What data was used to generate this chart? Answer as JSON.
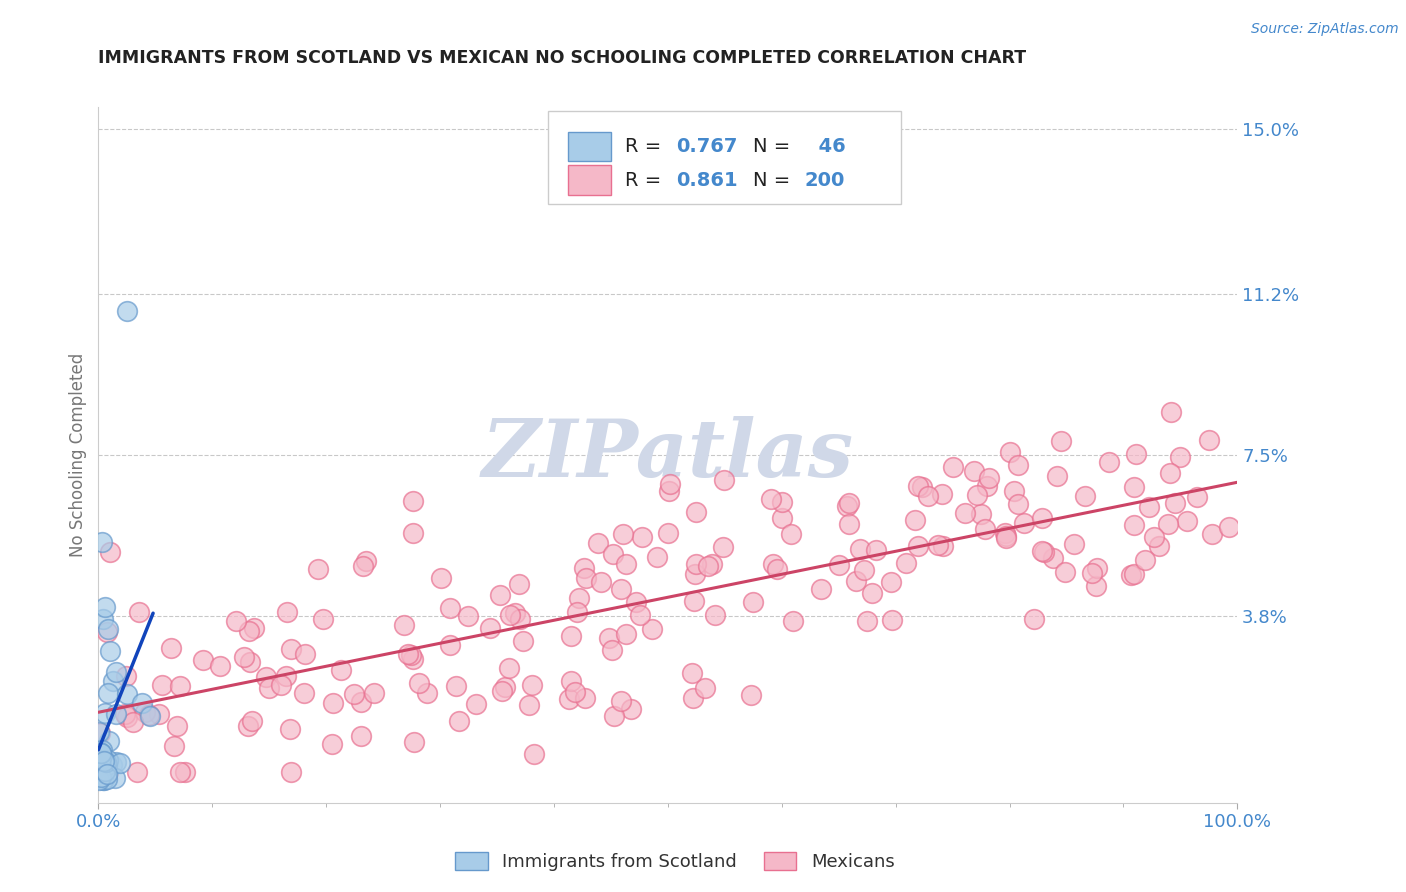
{
  "title": "IMMIGRANTS FROM SCOTLAND VS MEXICAN NO SCHOOLING COMPLETED CORRELATION CHART",
  "source": "Source: ZipAtlas.com",
  "ylabel": "No Schooling Completed",
  "xlim": [
    0,
    1.0
  ],
  "ylim": [
    -0.005,
    0.155
  ],
  "ytick_vals": [
    0.0,
    0.038,
    0.075,
    0.112,
    0.15
  ],
  "ytick_labels": [
    "",
    "3.8%",
    "7.5%",
    "11.2%",
    "15.0%"
  ],
  "xtick_vals": [
    0.0,
    1.0
  ],
  "xtick_labels": [
    "0.0%",
    "100.0%"
  ],
  "scotland_color": "#a8cce8",
  "scotland_edge": "#6699cc",
  "mexican_color": "#f5b8c8",
  "mexican_edge": "#e87090",
  "scotland_R": 0.767,
  "scotland_N": 46,
  "mexican_R": 0.861,
  "mexican_N": 200,
  "regression_scotland_color": "#1144bb",
  "regression_mexican_color": "#cc4466",
  "watermark_color": "#d0d8e8",
  "background_color": "#ffffff",
  "grid_color": "#bbbbbb",
  "title_color": "#222222",
  "label_color": "#4488cc",
  "tick_color": "#4488cc",
  "ylabel_color": "#777777",
  "legend_label1": "Immigrants from Scotland",
  "legend_label2": "Mexicans",
  "scotland_seed": 12,
  "mexican_seed": 7
}
